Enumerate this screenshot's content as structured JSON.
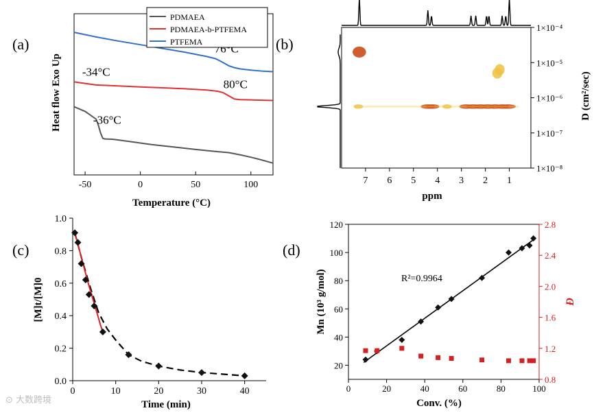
{
  "chart_data": [
    {
      "panel_label": "(a)",
      "type": "line",
      "xlabel": "Temperature (°C)",
      "ylabel": "Heat flow Exo Up",
      "xlim": [
        -60,
        120
      ],
      "xticks": [
        -50,
        0,
        50,
        100
      ],
      "yaxis_shown": false,
      "legend": "top-right",
      "series": [
        {
          "name": "PDMAEA",
          "color": "#555555",
          "x": [
            -60,
            -50,
            -40,
            -38,
            -36,
            -34,
            -32,
            -25,
            -10,
            10,
            30,
            50,
            70,
            80,
            90,
            100,
            110,
            120
          ],
          "y": [
            1.6,
            1.45,
            1.2,
            1.0,
            0.75,
            0.58,
            0.56,
            0.55,
            0.48,
            0.38,
            0.3,
            0.22,
            0.15,
            0.12,
            0.05,
            -0.03,
            -0.12,
            -0.22
          ]
        },
        {
          "name": "PDMAEA-b-PTFEMA",
          "color": "#e03030",
          "x": [
            -60,
            -40,
            -20,
            0,
            20,
            40,
            60,
            70,
            75,
            80,
            85,
            90,
            100,
            110,
            120
          ],
          "y": [
            2.4,
            2.3,
            2.27,
            2.24,
            2.21,
            2.18,
            2.14,
            2.1,
            2.05,
            1.95,
            1.85,
            1.83,
            1.82,
            1.81,
            1.8
          ]
        },
        {
          "name": "PTFEMA",
          "color": "#3070c8",
          "x": [
            -60,
            -40,
            -20,
            0,
            20,
            40,
            60,
            68,
            72,
            76,
            80,
            85,
            90,
            100,
            110,
            120
          ],
          "y": [
            4.0,
            3.85,
            3.72,
            3.6,
            3.48,
            3.36,
            3.22,
            3.15,
            3.08,
            3.0,
            2.92,
            2.86,
            2.82,
            2.78,
            2.75,
            2.73
          ]
        }
      ],
      "annotations": [
        {
          "text": "76°C",
          "x": 78,
          "y": 3.35
        },
        {
          "text": "-34°C",
          "x": -40,
          "y": 2.6
        },
        {
          "text": "80°C",
          "x": 86,
          "y": 2.2
        },
        {
          "text": "-36°C",
          "x": -30,
          "y": 1.05
        }
      ]
    },
    {
      "panel_label": "(b)",
      "type": "heatmap",
      "xlabel": "ppm",
      "ylabel": "D (cm²/sec)",
      "xlim": [
        8,
        0.1
      ],
      "xticks": [
        7,
        6,
        5,
        4,
        3,
        2,
        1
      ],
      "ylim_log10": [
        -8,
        -4
      ],
      "yticks": [
        "1×10⁻⁴",
        "1×10⁻⁵",
        "1×10⁻⁶",
        "1×10⁻⁷",
        "1×10⁻⁸"
      ],
      "spots": [
        {
          "ppm": 7.26,
          "logD": -4.7,
          "intensity": 0.8
        },
        {
          "ppm": 1.5,
          "logD": -5.3,
          "intensity": 0.4
        },
        {
          "ppm": 1.4,
          "logD": -5.2,
          "intensity": 0.35
        },
        {
          "ppm": 4.4,
          "logD": -6.25,
          "intensity": 0.9
        },
        {
          "ppm": 4.2,
          "logD": -6.25,
          "intensity": 0.8
        },
        {
          "ppm": 2.8,
          "logD": -6.25,
          "intensity": 0.85
        },
        {
          "ppm": 2.5,
          "logD": -6.25,
          "intensity": 1.0
        },
        {
          "ppm": 2.2,
          "logD": -6.25,
          "intensity": 0.9
        },
        {
          "ppm": 1.9,
          "logD": -6.25,
          "intensity": 0.95
        },
        {
          "ppm": 1.6,
          "logD": -6.25,
          "intensity": 0.85
        },
        {
          "ppm": 1.3,
          "logD": -6.25,
          "intensity": 0.8
        },
        {
          "ppm": 1.05,
          "logD": -6.25,
          "intensity": 1.0
        },
        {
          "ppm": 7.3,
          "logD": -6.25,
          "intensity": 0.3
        },
        {
          "ppm": 3.6,
          "logD": -6.25,
          "intensity": 0.3
        }
      ],
      "top_spectrum_peaks_ppm": [
        7.26,
        4.4,
        4.25,
        2.6,
        2.4,
        1.95,
        1.85,
        1.3,
        1.15,
        1.0
      ],
      "left_projection_peak_logD": -6.25
    },
    {
      "panel_label": "(c)",
      "type": "scatter",
      "xlabel": "Time (min)",
      "ylabel": "[M]t/[M]0",
      "xlim": [
        0,
        45
      ],
      "ylim": [
        0,
        1.0
      ],
      "xticks": [
        0,
        10,
        20,
        30,
        40
      ],
      "yticks": [
        0.0,
        0.2,
        0.4,
        0.6,
        0.8,
        1.0
      ],
      "series": [
        {
          "marker": "diamond",
          "color": "#111111",
          "x": [
            0.5,
            1.2,
            2.0,
            3.0,
            3.8,
            5.0,
            7.0,
            13.0,
            20.0,
            30.0,
            40.0
          ],
          "y": [
            0.91,
            0.85,
            0.72,
            0.62,
            0.53,
            0.46,
            0.3,
            0.16,
            0.09,
            0.05,
            0.03
          ]
        }
      ],
      "fit_red": {
        "x": [
          0.5,
          1.5,
          2.5,
          3.5,
          4.5,
          5.5,
          6.5,
          7.0
        ],
        "y": [
          0.91,
          0.81,
          0.71,
          0.61,
          0.52,
          0.43,
          0.34,
          0.3
        ]
      },
      "fit_dashed": {
        "x": [
          0.5,
          2,
          4,
          6,
          8,
          10,
          13,
          16,
          20,
          25,
          30,
          35,
          40
        ],
        "y": [
          0.91,
          0.76,
          0.58,
          0.42,
          0.32,
          0.25,
          0.16,
          0.12,
          0.09,
          0.066,
          0.05,
          0.04,
          0.03
        ]
      }
    },
    {
      "panel_label": "(d)",
      "type": "scatter",
      "xlabel": "Conv. (%)",
      "ylabel": "Mn (10³ g/mol)",
      "ylabel_right": "Đ",
      "xlim": [
        0,
        100
      ],
      "ylim": [
        10,
        120
      ],
      "ylim_right": [
        0.8,
        2.8
      ],
      "xticks": [
        0,
        20,
        40,
        60,
        80,
        100
      ],
      "yticks": [
        20,
        40,
        60,
        80,
        100,
        120
      ],
      "yticks_right": [
        0.8,
        1.2,
        1.6,
        2.0,
        2.4,
        2.8
      ],
      "annotation": "R²=0.9964",
      "series": [
        {
          "marker": "diamond",
          "color": "#111111",
          "axis": "left",
          "x": [
            9,
            15,
            28,
            38,
            47,
            54,
            70,
            84,
            91,
            95,
            97
          ],
          "y": [
            24,
            30,
            38,
            51,
            61,
            67,
            82,
            100,
            103,
            105,
            110
          ]
        },
        {
          "marker": "square",
          "color": "#d42020",
          "axis": "right",
          "x": [
            9,
            15,
            28,
            38,
            47,
            54,
            70,
            84,
            91,
            95,
            97
          ],
          "y": [
            1.17,
            1.17,
            1.2,
            1.1,
            1.08,
            1.07,
            1.05,
            1.04,
            1.04,
            1.04,
            1.04
          ]
        }
      ],
      "fit": {
        "x": [
          8,
          98
        ],
        "y": [
          22,
          110
        ]
      }
    }
  ],
  "watermark": "⊙ 大数跨境"
}
